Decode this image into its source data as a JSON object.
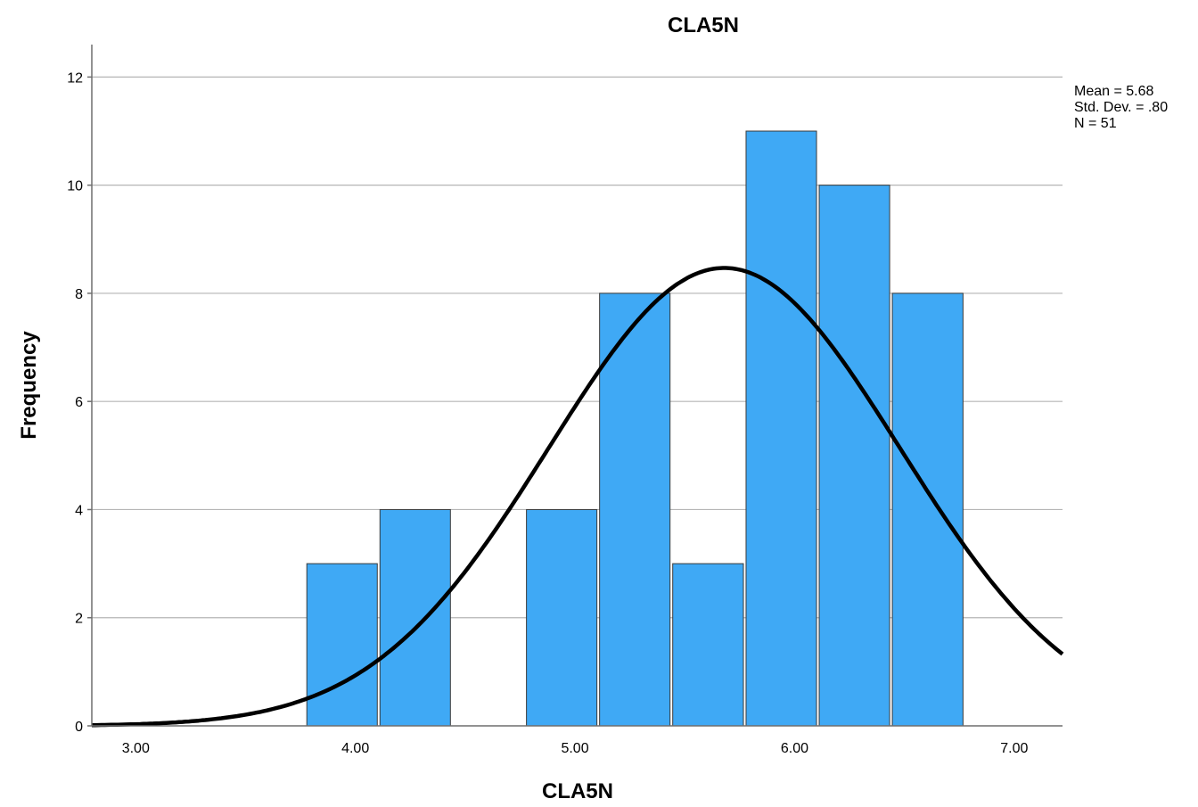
{
  "chart_data": {
    "type": "bar",
    "subtype": "histogram",
    "title": "CLA5N",
    "xlabel": "CLA5N",
    "ylabel": "Frequency",
    "xlim": [
      2.8,
      7.22
    ],
    "ylim": [
      0,
      12.6
    ],
    "xticks": [
      {
        "value": 3.0,
        "label": "3.00"
      },
      {
        "value": 4.0,
        "label": "4.00"
      },
      {
        "value": 5.0,
        "label": "5.00"
      },
      {
        "value": 6.0,
        "label": "6.00"
      },
      {
        "value": 7.0,
        "label": "7.00"
      }
    ],
    "yticks": [
      {
        "value": 0,
        "label": "0"
      },
      {
        "value": 2,
        "label": "2"
      },
      {
        "value": 4,
        "label": "4"
      },
      {
        "value": 6,
        "label": "6"
      },
      {
        "value": 8,
        "label": "8"
      },
      {
        "value": 10,
        "label": "10"
      },
      {
        "value": 12,
        "label": "12"
      }
    ],
    "bin_width": 0.333,
    "bins": [
      {
        "start": 3.773,
        "end": 4.106,
        "count": 3
      },
      {
        "start": 4.106,
        "end": 4.439,
        "count": 4
      },
      {
        "start": 4.773,
        "end": 5.106,
        "count": 4
      },
      {
        "start": 5.106,
        "end": 5.439,
        "count": 8
      },
      {
        "start": 5.439,
        "end": 5.773,
        "count": 3
      },
      {
        "start": 5.773,
        "end": 6.106,
        "count": 11
      },
      {
        "start": 6.106,
        "end": 6.439,
        "count": 10
      },
      {
        "start": 6.439,
        "end": 6.773,
        "count": 8
      }
    ],
    "normal_curve": {
      "mean": 5.68,
      "sd": 0.8,
      "n": 51
    },
    "stats_text": [
      "Mean = 5.68",
      "Std. Dev. = .80",
      "N = 51"
    ],
    "grid": {
      "horizontal": true,
      "vertical": false
    },
    "colors": {
      "bar_fill": "#3fa9f5",
      "bar_stroke": "#3a3a3a",
      "curve": "#000000",
      "grid": "#b5b5b5",
      "axis": "#6e6e6e"
    }
  }
}
